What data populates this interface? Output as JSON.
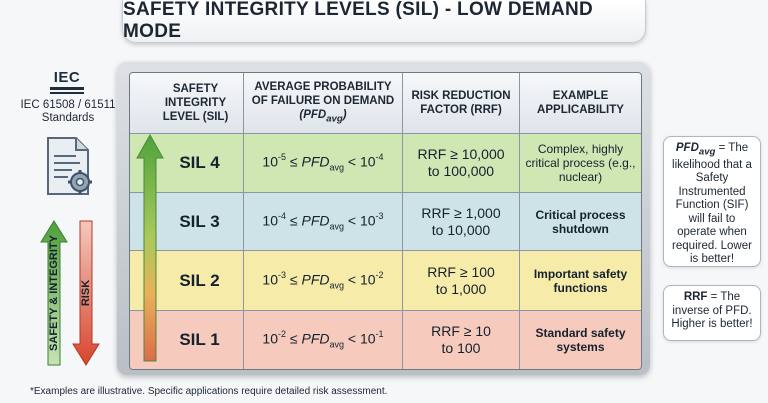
{
  "title": "SAFETY INTEGRITY LEVELS (SIL) - LOW DEMAND MODE",
  "sidebar": {
    "logo_text": "IEC",
    "standards_line1": "IEC 61508 / 61511",
    "standards_line2": "Standards",
    "safety_label": "SAFETY & INTEGRITY",
    "risk_label": "RISK",
    "icons": [
      "iec-logo",
      "document-gear-icon",
      "arrow-up-icon",
      "arrow-down-icon"
    ]
  },
  "table": {
    "headers": {
      "col1": "SAFETY INTEGRITY LEVEL (SIL)",
      "col2_main": "AVERAGE PROBABILITY OF FAILURE ON DEMAND",
      "col2_sub": "avg",
      "col3": "RISK REDUCTION FACTOR (RRF)",
      "col4": "EXAMPLE APPLICABILITY"
    },
    "rows": [
      {
        "sil": "SIL 4",
        "pfd_low": "-5",
        "pfd_high": "-4",
        "rrf1": "RRF ≥ 10,000",
        "rrf2": "to 100,000",
        "app": "Complex, highly critical process (e.g., nuclear)",
        "color": "#cfe7b3"
      },
      {
        "sil": "SIL 3",
        "pfd_low": "-4",
        "pfd_high": "-3",
        "rrf1": "RRF ≥ 1,000",
        "rrf2": "to 10,000",
        "app": "Critical process shutdown",
        "color": "#cde3e8"
      },
      {
        "sil": "SIL 2",
        "pfd_low": "-3",
        "pfd_high": "-2",
        "rrf1": "RRF ≥ 100",
        "rrf2": "to 1,000",
        "app": "Important safety functions",
        "color": "#f7ebaa"
      },
      {
        "sil": "SIL 1",
        "pfd_low": "-2",
        "pfd_high": "-1",
        "rrf1": "RRF ≥ 10",
        "rrf2": "to 100",
        "app": "Standard safety systems",
        "color": "#f6cbbd"
      }
    ],
    "pfd_base": "10",
    "pfd_symbol": "PFD",
    "pfd_sub": "avg"
  },
  "notes": {
    "pfd_def_term": "PFD",
    "pfd_def_sub": "avg",
    "pfd_def_text": " = The likelihood that a Safety Instrumented Function (SIF) will fail to operate when required. Lower is better!",
    "rrf_def_term": "RRF",
    "rrf_def_text": " = The inverse of PFD. Higher is better!"
  },
  "footnote": "*Examples are illustrative. Specific applications require detailed risk assessment.",
  "colors": {
    "arrow_green": "#5aa642",
    "arrow_red": "#d9513a",
    "frame": "#b9bfc6"
  }
}
